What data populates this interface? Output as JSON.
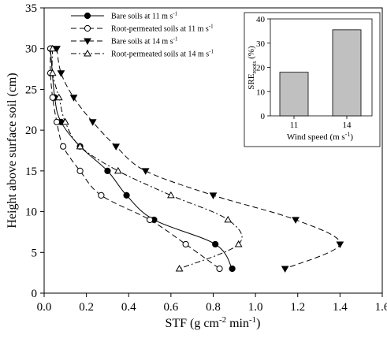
{
  "chart_data": [
    {
      "type": "line",
      "title": "",
      "xlabel_parts": [
        "STF (g cm",
        "-2",
        " min",
        "-1",
        ")"
      ],
      "ylabel": "Height above surface soil (cm)",
      "xlim": [
        0.0,
        1.6
      ],
      "ylim": [
        0,
        35
      ],
      "xticks": [
        "0.0",
        "0.2",
        "0.4",
        "0.6",
        "0.8",
        "1.0",
        "1.2",
        "1.4",
        "1.6"
      ],
      "yticks": [
        "0",
        "5",
        "10",
        "15",
        "20",
        "25",
        "30",
        "35"
      ],
      "grid": false,
      "legend_position": "top-left",
      "series": [
        {
          "name_parts": [
            "Bare soils at 11 m s",
            "-1"
          ],
          "marker": "filled-circle",
          "line_style": "solid",
          "x": [
            0.03,
            0.05,
            0.08,
            0.17,
            0.3,
            0.39,
            0.52,
            0.81,
            0.89
          ],
          "y": [
            30,
            24,
            21,
            18,
            15,
            12,
            9,
            6,
            3
          ]
        },
        {
          "name_parts": [
            "Root-permeated soils at 11 m s",
            "-1"
          ],
          "marker": "open-circle",
          "line_style": "dashed",
          "x": [
            0.03,
            0.03,
            0.04,
            0.06,
            0.09,
            0.17,
            0.27,
            0.5,
            0.67,
            0.83
          ],
          "y": [
            30,
            27,
            24,
            21,
            18,
            15,
            12,
            9,
            6,
            3
          ]
        },
        {
          "name_parts": [
            "Bare soils at 14 m s",
            "-1"
          ],
          "marker": "filled-triangle-down",
          "line_style": "dashed",
          "x": [
            0.06,
            0.08,
            0.14,
            0.23,
            0.34,
            0.48,
            0.8,
            1.19,
            1.4,
            1.14
          ],
          "y": [
            30,
            27,
            24,
            21,
            18,
            15,
            12,
            9,
            6,
            3
          ]
        },
        {
          "name_parts": [
            "Root-permeated soils at 14 m s",
            "-1"
          ],
          "marker": "open-triangle-up",
          "line_style": "dash-dot",
          "x": [
            0.04,
            0.04,
            0.07,
            0.1,
            0.17,
            0.35,
            0.6,
            0.87,
            0.92,
            0.64
          ],
          "y": [
            30,
            27,
            24,
            21,
            18,
            15,
            12,
            9,
            6,
            3
          ]
        }
      ]
    },
    {
      "type": "bar",
      "title": "",
      "categories": [
        "11",
        "14"
      ],
      "values": [
        18,
        35.5
      ],
      "ylim": [
        0,
        40
      ],
      "yticks": [
        "0",
        "10",
        "20",
        "30",
        "40"
      ],
      "xlabel_parts": [
        "Wind speed (m s",
        "-1",
        ")"
      ],
      "ylabel_parts": [
        "SRE",
        "roots",
        " (%)"
      ],
      "bar_color": "#c0c0c0"
    }
  ]
}
